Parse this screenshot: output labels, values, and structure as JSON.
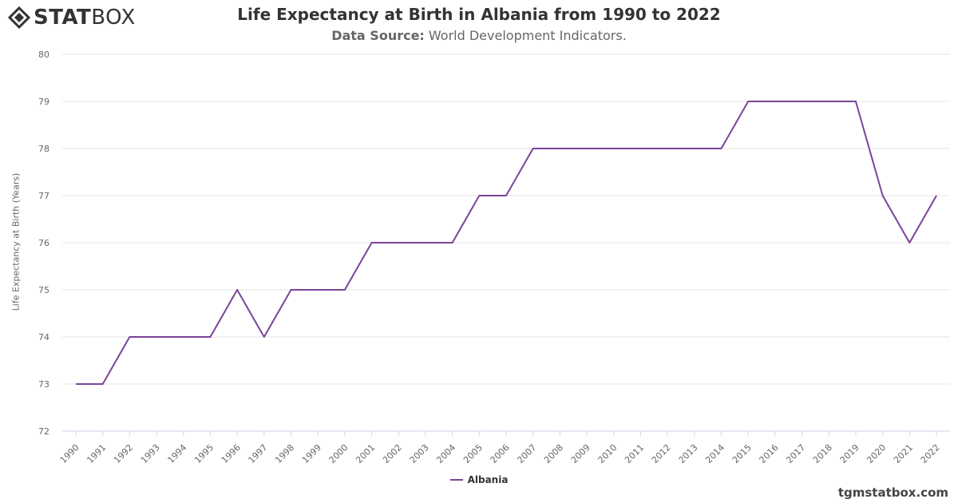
{
  "logo": {
    "bold": "STAT",
    "light": "BOX"
  },
  "header": {
    "title": "Life Expectancy at Birth in Albania from 1990 to 2022",
    "source_label": "Data Source:",
    "source_value": "World Development Indicators."
  },
  "credit": "tgmstatbox.com",
  "colors": {
    "series": "#7b4397",
    "grid": "#e6e6e6",
    "axis_text": "#666666"
  },
  "chart_data": {
    "type": "line",
    "title": "Life Expectancy at Birth in Albania from 1990 to 2022",
    "xlabel": "",
    "ylabel": "Life Expectancy at Birth (Years)",
    "ylim": [
      72,
      80
    ],
    "yticks": [
      72,
      73,
      74,
      75,
      76,
      77,
      78,
      79,
      80
    ],
    "grid": true,
    "legend": "bottom-center",
    "categories": [
      "1990",
      "1991",
      "1992",
      "1993",
      "1994",
      "1995",
      "1996",
      "1997",
      "1998",
      "1999",
      "2000",
      "2001",
      "2002",
      "2003",
      "2004",
      "2005",
      "2006",
      "2007",
      "2008",
      "2009",
      "2010",
      "2011",
      "2012",
      "2013",
      "2014",
      "2015",
      "2016",
      "2017",
      "2018",
      "2019",
      "2020",
      "2021",
      "2022"
    ],
    "series": [
      {
        "name": "Albania",
        "values": [
          73,
          73,
          74,
          74,
          74,
          74,
          75,
          74,
          75,
          75,
          75,
          76,
          76,
          76,
          76,
          77,
          77,
          78,
          78,
          78,
          78,
          78,
          78,
          78,
          78,
          79,
          79,
          79,
          79,
          79,
          77,
          76,
          77
        ]
      }
    ]
  }
}
